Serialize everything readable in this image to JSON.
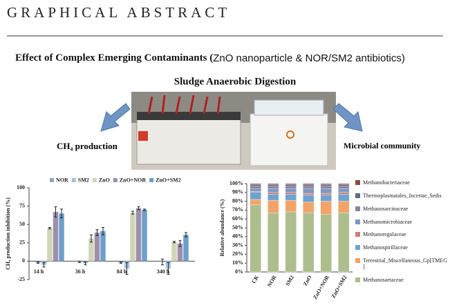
{
  "header": {
    "title": "GRAPHICAL ABSTRACT"
  },
  "abstract": {
    "title_bold": "Effect of Complex Emerging Contaminants (",
    "title_rest": "ZnO nanoparticle & NOR/SM2 antibiotics)",
    "process": "Sludge Anaerobic Digestion",
    "left_label": "CH₄ production",
    "right_label": "Microbial community"
  },
  "chart_data": [
    {
      "type": "bar",
      "ylabel": "CH₄ production inhibition (%)",
      "categories": [
        "14 h",
        "36 h",
        "84 h",
        "340 h"
      ],
      "series": [
        {
          "name": "NOR",
          "color": "#9aa1b6",
          "values": [
            -2,
            -1,
            -2,
            -1
          ],
          "errors": [
            1,
            1,
            1,
            4
          ]
        },
        {
          "name": "SM2",
          "color": "#a7c3df",
          "values": [
            -5,
            -3,
            -10,
            -10
          ],
          "errors": [
            3,
            2,
            8,
            8
          ]
        },
        {
          "name": "ZnO",
          "color": "#cfd6b4",
          "values": [
            45,
            31,
            66,
            26
          ],
          "errors": [
            1,
            5,
            2,
            1
          ]
        },
        {
          "name": "ZnO+NOR",
          "color": "#9d8fac",
          "values": [
            67,
            39,
            72,
            24
          ],
          "errors": [
            7,
            4,
            2,
            4
          ]
        },
        {
          "name": "ZnO+SM2",
          "color": "#6d9fcb",
          "values": [
            65,
            41,
            70,
            36
          ],
          "errors": [
            6,
            5,
            1,
            3
          ]
        }
      ],
      "ylim": [
        -25,
        100
      ],
      "yticks": [
        -25,
        0,
        25,
        50,
        75,
        100
      ]
    },
    {
      "type": "stacked_bar",
      "ylabel": "Relative abundance (%)",
      "categories": [
        "CK",
        "NOR",
        "SM2",
        "ZnO",
        "ZnO+NOR",
        "ZnO+SM2"
      ],
      "series": [
        {
          "name": "Methanosaetaceae",
          "color": "#aebd8e",
          "values": [
            76,
            67,
            68,
            67,
            65,
            67
          ]
        },
        {
          "name": "Terrestrial_Miscellaneous_Gp[TMEG]",
          "color": "#f2a468",
          "values": [
            6,
            14,
            13,
            12,
            15,
            13
          ]
        },
        {
          "name": "Methanospirillaceae",
          "color": "#6fa3d2",
          "values": [
            8,
            7,
            7,
            8,
            7,
            8
          ]
        },
        {
          "name": "Methanoregulaceae",
          "color": "#c98272",
          "values": [
            1,
            2,
            2,
            2,
            2,
            2
          ]
        },
        {
          "name": "Methanomicrobiaceae",
          "color": "#7c98c3",
          "values": [
            3,
            4,
            4,
            5,
            5,
            4
          ]
        },
        {
          "name": "Methanosarcinaceae",
          "color": "#8d82a3",
          "values": [
            3,
            3,
            3,
            3,
            3,
            3
          ]
        },
        {
          "name": "Thermoplasmatales_Incertae_Sedis",
          "color": "#5b6b82",
          "values": [
            2,
            2,
            2,
            2,
            2,
            2
          ]
        },
        {
          "name": "Methanobacteriaceae",
          "color": "#8b4b3c",
          "values": [
            1,
            1,
            1,
            1,
            1,
            1
          ]
        }
      ],
      "ylim": [
        0,
        100
      ],
      "yticks": [
        {
          "value": 0,
          "label": "0%"
        },
        {
          "value": 10,
          "label": "10%"
        },
        {
          "value": 20,
          "label": "20%"
        },
        {
          "value": 30,
          "label": "30%"
        },
        {
          "value": 40,
          "label": "40%"
        },
        {
          "value": 50,
          "label": "50%"
        },
        {
          "value": 60,
          "label": "60%"
        },
        {
          "value": 70,
          "label": "70%"
        },
        {
          "value": 80,
          "label": "80%"
        },
        {
          "value": 90,
          "label": "90%"
        },
        {
          "value": 100,
          "label": "100%"
        }
      ]
    }
  ]
}
